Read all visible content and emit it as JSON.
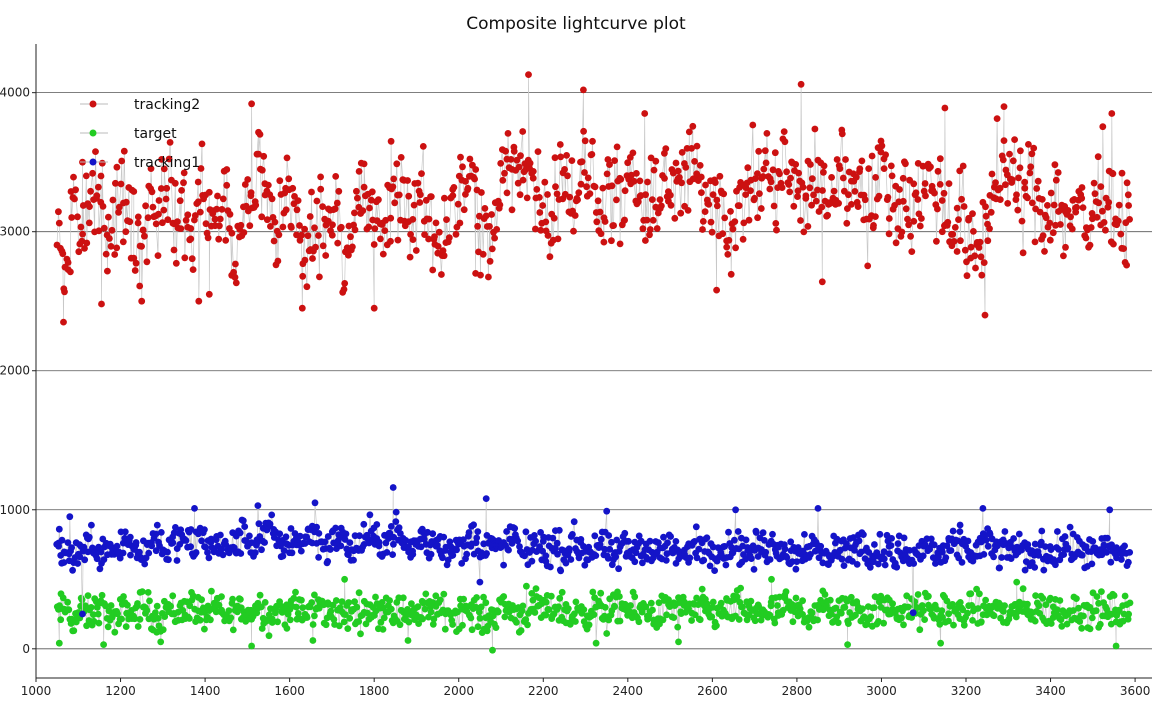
{
  "chart_data": {
    "type": "scatter",
    "title": "Composite lightcurve plot",
    "xlabel": "",
    "ylabel": "",
    "xlim": [
      1000,
      3640
    ],
    "ylim": [
      -210,
      4350
    ],
    "xticks": [
      1000,
      1200,
      1400,
      1600,
      1800,
      2000,
      2200,
      2400,
      2600,
      2800,
      3000,
      3200,
      3400,
      3600
    ],
    "yticks": [
      0,
      1000,
      2000,
      3000,
      4000
    ],
    "grid": "horizontal",
    "legend_position": "top-left",
    "series": [
      {
        "name": "tracking2",
        "color": "#cc1111",
        "connected": true,
        "x": [
          1050,
          1070,
          1090,
          1110,
          1130,
          1150,
          1170,
          1190,
          1210,
          1230,
          1250,
          1270,
          1290,
          1310,
          1330,
          1350,
          1370,
          1390,
          1410,
          1430,
          1450,
          1470,
          1490,
          1510,
          1530,
          1550,
          1570,
          1590,
          1610,
          1630,
          1650,
          1670,
          1690,
          1710,
          1730,
          1750,
          1770,
          1790,
          1810,
          1830,
          1850,
          1870,
          1890,
          1910,
          1930,
          1950,
          1970,
          1990,
          2010,
          2030,
          2050,
          2070,
          2090,
          2110,
          2130,
          2150,
          2170,
          2190,
          2210,
          2230,
          2250,
          2270,
          2290,
          2310,
          2330,
          2350,
          2370,
          2390,
          2410,
          2430,
          2450,
          2470,
          2490,
          2510,
          2530,
          2550,
          2570,
          2590,
          2610,
          2630,
          2650,
          2670,
          2690,
          2710,
          2730,
          2750,
          2770,
          2790,
          2810,
          2830,
          2850,
          2870,
          2890,
          2910,
          2930,
          2950,
          2970,
          2990,
          3010,
          3030,
          3050,
          3070,
          3090,
          3110,
          3130,
          3150,
          3170,
          3190,
          3210,
          3230,
          3250,
          3270,
          3290,
          3310,
          3330,
          3350,
          3370,
          3390,
          3410,
          3430,
          3450,
          3470,
          3490,
          3510,
          3530,
          3550,
          3570,
          3590
        ],
        "y": [
          3100,
          2600,
          3300,
          2900,
          3200,
          3400,
          2950,
          3150,
          3250,
          3050,
          2850,
          3300,
          3100,
          3450,
          3000,
          3200,
          2900,
          3350,
          3150,
          3000,
          3250,
          2700,
          3100,
          3300,
          3500,
          3150,
          2950,
          3350,
          3200,
          2800,
          2950,
          3100,
          3050,
          3250,
          2850,
          3000,
          3300,
          3150,
          2950,
          3100,
          3200,
          3350,
          3000,
          3250,
          3100,
          2900,
          3050,
          3300,
          3200,
          3450,
          3000,
          2850,
          3100,
          3500,
          3350,
          3600,
          3400,
          3250,
          3100,
          3300,
          3500,
          3200,
          3350,
          3450,
          3150,
          3300,
          3250,
          3100,
          3400,
          3200,
          3050,
          3300,
          3450,
          3250,
          3350,
          3500,
          3300,
          3150,
          3400,
          3100,
          2950,
          3200,
          3350,
          3300,
          3450,
          3250,
          3500,
          3350,
          3150,
          3300,
          3400,
          3200,
          3350,
          3500,
          3250,
          3400,
          3150,
          3300,
          3450,
          3200,
          3350,
          3100,
          3250,
          3400,
          3300,
          3150,
          3000,
          3200,
          2800,
          2900,
          3100,
          3350,
          3500,
          3300,
          3200,
          3400,
          3250,
          3100,
          3300,
          3050,
          3200,
          3150,
          3000,
          3250,
          3350,
          3150,
          3100,
          3250
        ],
        "extremes": [
          [
            1065,
            2350
          ],
          [
            1110,
            3500
          ],
          [
            1155,
            2480
          ],
          [
            1250,
            2500
          ],
          [
            1385,
            2500
          ],
          [
            1410,
            2550
          ],
          [
            1510,
            3920
          ],
          [
            1530,
            3700
          ],
          [
            1630,
            2450
          ],
          [
            1800,
            2450
          ],
          [
            1840,
            3650
          ],
          [
            2040,
            2700
          ],
          [
            2165,
            4130
          ],
          [
            2295,
            4020
          ],
          [
            2440,
            3850
          ],
          [
            2610,
            2580
          ],
          [
            2810,
            4060
          ],
          [
            2860,
            2640
          ],
          [
            3150,
            3890
          ],
          [
            3245,
            2400
          ],
          [
            3290,
            3900
          ],
          [
            3545,
            3850
          ],
          [
            3580,
            2760
          ]
        ]
      },
      {
        "name": "target",
        "color": "#22cc22",
        "connected": true,
        "x": [
          1050,
          1070,
          1090,
          1110,
          1130,
          1150,
          1170,
          1190,
          1210,
          1230,
          1250,
          1270,
          1290,
          1310,
          1330,
          1350,
          1370,
          1390,
          1410,
          1430,
          1450,
          1470,
          1490,
          1510,
          1530,
          1550,
          1570,
          1590,
          1610,
          1630,
          1650,
          1670,
          1690,
          1710,
          1730,
          1750,
          1770,
          1790,
          1810,
          1830,
          1850,
          1870,
          1890,
          1910,
          1930,
          1950,
          1970,
          1990,
          2010,
          2030,
          2050,
          2070,
          2090,
          2110,
          2130,
          2150,
          2170,
          2190,
          2210,
          2230,
          2250,
          2270,
          2290,
          2310,
          2330,
          2350,
          2370,
          2390,
          2410,
          2430,
          2450,
          2470,
          2490,
          2510,
          2530,
          2550,
          2570,
          2590,
          2610,
          2630,
          2650,
          2670,
          2690,
          2710,
          2730,
          2750,
          2770,
          2790,
          2810,
          2830,
          2850,
          2870,
          2890,
          2910,
          2930,
          2950,
          2970,
          2990,
          3010,
          3030,
          3050,
          3070,
          3090,
          3110,
          3130,
          3150,
          3170,
          3190,
          3210,
          3230,
          3250,
          3270,
          3290,
          3310,
          3330,
          3350,
          3370,
          3390,
          3410,
          3430,
          3450,
          3470,
          3490,
          3510,
          3530,
          3550,
          3570,
          3590
        ],
        "y": [
          250,
          300,
          200,
          280,
          230,
          320,
          260,
          180,
          290,
          240,
          310,
          270,
          220,
          300,
          250,
          280,
          330,
          240,
          260,
          300,
          210,
          290,
          270,
          250,
          320,
          230,
          280,
          260,
          300,
          240,
          270,
          310,
          250,
          290,
          220,
          280,
          260,
          300,
          240,
          330,
          270,
          250,
          290,
          230,
          310,
          260,
          280,
          240,
          300,
          270,
          250,
          200,
          290,
          310,
          260,
          240,
          280,
          300,
          250,
          320,
          270,
          230,
          290,
          260,
          310,
          240,
          280,
          300,
          250,
          270,
          290,
          230,
          310,
          260,
          280,
          240,
          300,
          270,
          250,
          290,
          260,
          310,
          240,
          280,
          270,
          250,
          300,
          260,
          290,
          240,
          280,
          310,
          250,
          270,
          300,
          260,
          240,
          290,
          270,
          310,
          250,
          280,
          260,
          300,
          240,
          290,
          270,
          250,
          310,
          260,
          280,
          300,
          240,
          270,
          290,
          250,
          310,
          260,
          280,
          240,
          300,
          270,
          250,
          290,
          260,
          280,
          240,
          270
        ],
        "extremes": [
          [
            1055,
            40
          ],
          [
            1160,
            30
          ],
          [
            1295,
            50
          ],
          [
            1510,
            20
          ],
          [
            1655,
            60
          ],
          [
            1730,
            500
          ],
          [
            1880,
            60
          ],
          [
            2080,
            -10
          ],
          [
            2160,
            450
          ],
          [
            2325,
            40
          ],
          [
            2520,
            50
          ],
          [
            2740,
            500
          ],
          [
            2920,
            30
          ],
          [
            3140,
            40
          ],
          [
            3320,
            480
          ],
          [
            3555,
            20
          ]
        ]
      },
      {
        "name": "tracking1",
        "color": "#1414c8",
        "connected": true,
        "x": [
          1050,
          1070,
          1090,
          1110,
          1130,
          1150,
          1170,
          1190,
          1210,
          1230,
          1250,
          1270,
          1290,
          1310,
          1330,
          1350,
          1370,
          1390,
          1410,
          1430,
          1450,
          1470,
          1490,
          1510,
          1530,
          1550,
          1570,
          1590,
          1610,
          1630,
          1650,
          1670,
          1690,
          1710,
          1730,
          1750,
          1770,
          1790,
          1810,
          1830,
          1850,
          1870,
          1890,
          1910,
          1930,
          1950,
          1970,
          1990,
          2010,
          2030,
          2050,
          2070,
          2090,
          2110,
          2130,
          2150,
          2170,
          2190,
          2210,
          2230,
          2250,
          2270,
          2290,
          2310,
          2330,
          2350,
          2370,
          2390,
          2410,
          2430,
          2450,
          2470,
          2490,
          2510,
          2530,
          2550,
          2570,
          2590,
          2610,
          2630,
          2650,
          2670,
          2690,
          2710,
          2730,
          2750,
          2770,
          2790,
          2810,
          2830,
          2850,
          2870,
          2890,
          2910,
          2930,
          2950,
          2970,
          2990,
          3010,
          3030,
          3050,
          3070,
          3090,
          3110,
          3130,
          3150,
          3170,
          3190,
          3210,
          3230,
          3250,
          3270,
          3290,
          3310,
          3330,
          3350,
          3370,
          3390,
          3410,
          3430,
          3450,
          3470,
          3490,
          3510,
          3530,
          3550,
          3570,
          3590
        ],
        "y": [
          700,
          740,
          650,
          720,
          780,
          690,
          760,
          710,
          800,
          730,
          680,
          750,
          820,
          700,
          760,
          790,
          720,
          840,
          710,
          770,
          690,
          750,
          820,
          740,
          800,
          860,
          780,
          730,
          810,
          760,
          850,
          790,
          720,
          810,
          760,
          700,
          770,
          820,
          740,
          790,
          860,
          760,
          700,
          800,
          740,
          780,
          710,
          760,
          690,
          820,
          730,
          770,
          700,
          740,
          810,
          680,
          720,
          760,
          700,
          740,
          660,
          780,
          720,
          690,
          740,
          700,
          650,
          730,
          690,
          760,
          710,
          680,
          740,
          700,
          660,
          720,
          760,
          690,
          730,
          700,
          770,
          720,
          680,
          740,
          700,
          760,
          710,
          680,
          720,
          760,
          700,
          650,
          740,
          690,
          720,
          760,
          700,
          680,
          730,
          670,
          710,
          640,
          700,
          740,
          690,
          660,
          720,
          750,
          690,
          730,
          770,
          700,
          680,
          740,
          710,
          650,
          730,
          700,
          680,
          750,
          720,
          690,
          700,
          660,
          720,
          680,
          700,
          650
        ],
        "extremes": [
          [
            1055,
            860
          ],
          [
            1080,
            950
          ],
          [
            1110,
            250
          ],
          [
            1375,
            1010
          ],
          [
            1525,
            1030
          ],
          [
            1660,
            1050
          ],
          [
            1845,
            1160
          ],
          [
            2065,
            1080
          ],
          [
            2050,
            480
          ],
          [
            2350,
            990
          ],
          [
            2655,
            1000
          ],
          [
            2850,
            1010
          ],
          [
            3075,
            260
          ],
          [
            3240,
            1010
          ],
          [
            3540,
            1000
          ]
        ]
      }
    ]
  }
}
